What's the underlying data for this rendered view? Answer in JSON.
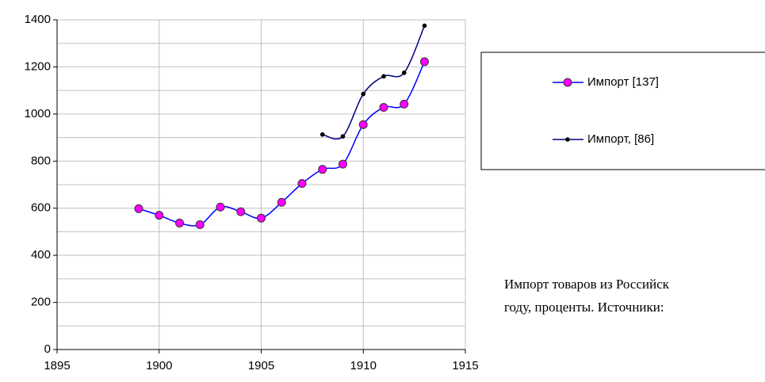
{
  "chart_data": {
    "type": "line",
    "x": [
      1899,
      1900,
      1901,
      1902,
      1903,
      1904,
      1905,
      1906,
      1907,
      1908,
      1909,
      1910,
      1911,
      1912,
      1913
    ],
    "series": [
      {
        "name": "Импорт [137]",
        "color": "#0000ff",
        "marker_color": "#ff00ff",
        "values": [
          598,
          570,
          537,
          530,
          605,
          585,
          558,
          625,
          705,
          765,
          787,
          955,
          1028,
          1042,
          1222
        ]
      },
      {
        "name": "Импорт, [86]",
        "color": "#000080",
        "marker_color": "#000000",
        "values": [
          null,
          null,
          null,
          null,
          null,
          null,
          null,
          null,
          null,
          913,
          905,
          1085,
          1160,
          1175,
          1375
        ]
      }
    ],
    "xlim": [
      1895,
      1915
    ],
    "xticks": [
      1895,
      1900,
      1905,
      1910,
      1915
    ],
    "ylim": [
      0,
      1400
    ],
    "yticks": [
      0,
      200,
      400,
      600,
      800,
      1000,
      1200,
      1400
    ],
    "y_minor_gridlines": [
      100,
      300,
      500,
      700,
      900,
      1100,
      1300
    ],
    "grid": true,
    "smooth": true,
    "legend": "right",
    "annotation": [
      "Импорт товаров из Российск",
      "году, проценты. Источники:"
    ]
  }
}
